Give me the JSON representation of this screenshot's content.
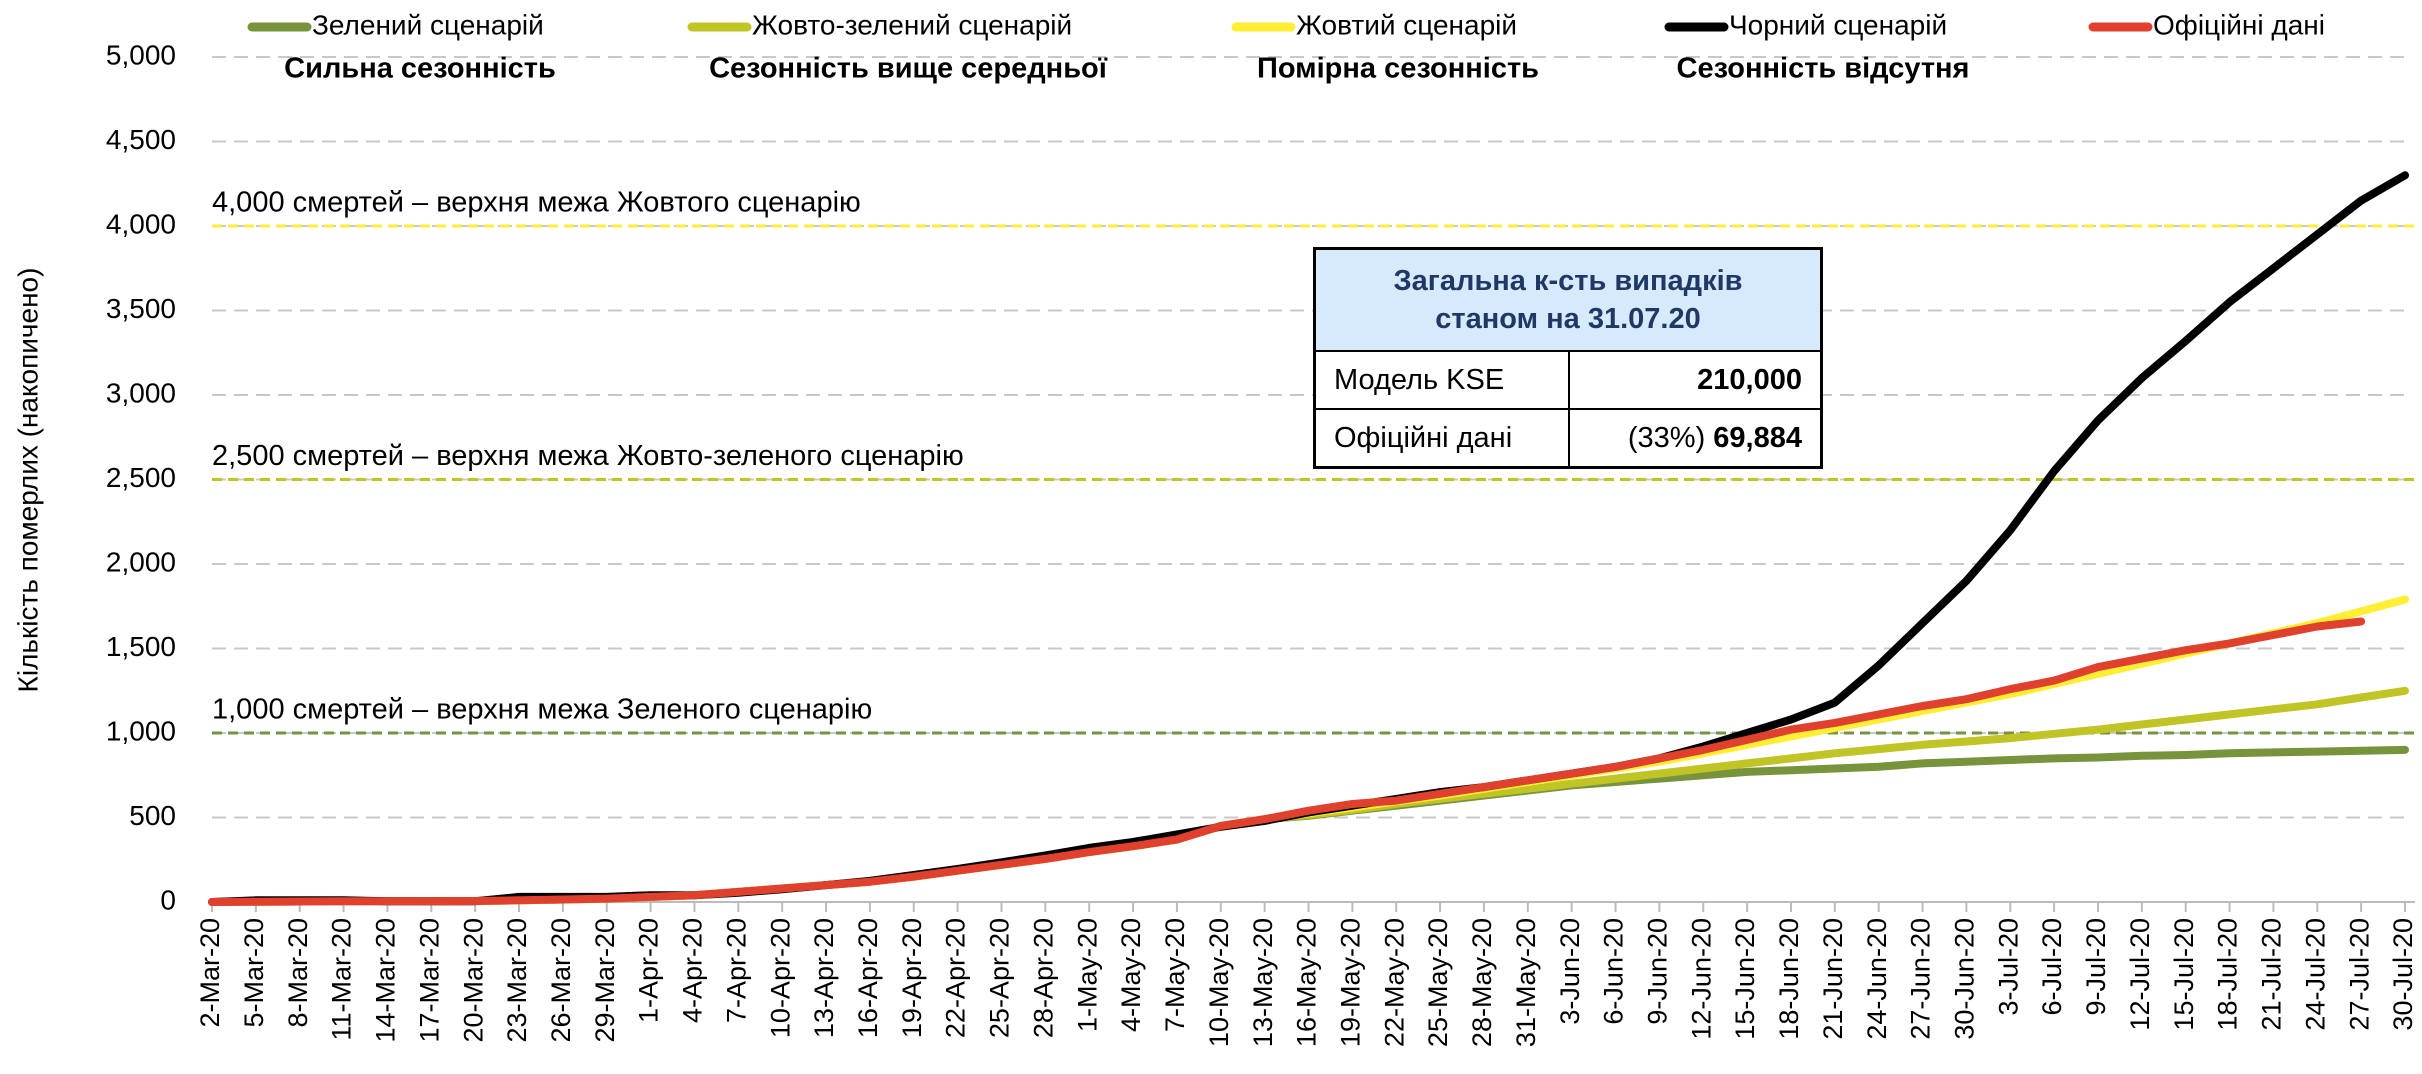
{
  "chart_data": {
    "type": "line",
    "y_label": "Кількість померлих (накопичено)",
    "categories": [
      "2-Mar-20",
      "5-Mar-20",
      "8-Mar-20",
      "11-Mar-20",
      "14-Mar-20",
      "17-Mar-20",
      "20-Mar-20",
      "23-Mar-20",
      "26-Mar-20",
      "29-Mar-20",
      "1-Apr-20",
      "4-Apr-20",
      "7-Apr-20",
      "10-Apr-20",
      "13-Apr-20",
      "16-Apr-20",
      "19-Apr-20",
      "22-Apr-20",
      "25-Apr-20",
      "28-Apr-20",
      "1-May-20",
      "4-May-20",
      "7-May-20",
      "10-May-20",
      "13-May-20",
      "16-May-20",
      "19-May-20",
      "22-May-20",
      "25-May-20",
      "28-May-20",
      "31-May-20",
      "3-Jun-20",
      "6-Jun-20",
      "9-Jun-20",
      "12-Jun-20",
      "15-Jun-20",
      "18-Jun-20",
      "21-Jun-20",
      "24-Jun-20",
      "27-Jun-20",
      "30-Jun-20",
      "3-Jul-20",
      "6-Jul-20",
      "9-Jul-20",
      "12-Jul-20",
      "15-Jul-20",
      "18-Jul-20",
      "21-Jul-20",
      "24-Jul-20",
      "27-Jul-20",
      "30-Jul-20"
    ],
    "series": [
      {
        "name": "Зелений сценарій",
        "note": "Сильна сезонність",
        "color": "#77933c",
        "values": [
          0,
          2,
          3,
          4,
          5,
          5,
          6,
          10,
          15,
          20,
          30,
          40,
          60,
          80,
          100,
          120,
          150,
          185,
          220,
          255,
          295,
          330,
          370,
          450,
          490,
          510,
          540,
          570,
          600,
          630,
          660,
          690,
          710,
          730,
          750,
          770,
          780,
          790,
          800,
          820,
          830,
          840,
          850,
          855,
          865,
          870,
          880,
          885,
          890,
          895,
          900
        ]
      },
      {
        "name": "Жовто-зелений сценарій",
        "note": "Сезонність вище середньої",
        "color": "#c0c424",
        "values": [
          0,
          2,
          3,
          4,
          5,
          5,
          6,
          10,
          15,
          20,
          30,
          40,
          60,
          80,
          100,
          120,
          150,
          185,
          220,
          255,
          295,
          330,
          370,
          450,
          490,
          515,
          545,
          580,
          610,
          640,
          670,
          700,
          730,
          760,
          790,
          820,
          850,
          880,
          905,
          930,
          950,
          970,
          995,
          1020,
          1050,
          1080,
          1110,
          1140,
          1170,
          1210,
          1250
        ]
      },
      {
        "name": "Жовтий сценарій",
        "note": "Помірна сезонність",
        "color": "#ffee33",
        "values": [
          0,
          2,
          3,
          4,
          5,
          5,
          6,
          10,
          15,
          20,
          30,
          40,
          60,
          80,
          100,
          120,
          150,
          185,
          220,
          255,
          295,
          330,
          370,
          450,
          490,
          525,
          560,
          595,
          630,
          670,
          710,
          750,
          790,
          830,
          880,
          930,
          980,
          1030,
          1080,
          1130,
          1180,
          1230,
          1290,
          1350,
          1410,
          1470,
          1530,
          1590,
          1650,
          1720,
          1790
        ]
      },
      {
        "name": "Чорний сценарій",
        "note": "Сезонність відсутня",
        "color": "#000000",
        "values": [
          0,
          10,
          10,
          10,
          5,
          5,
          5,
          30,
          30,
          30,
          40,
          40,
          55,
          75,
          100,
          125,
          160,
          195,
          235,
          275,
          320,
          355,
          400,
          445,
          480,
          530,
          570,
          610,
          650,
          680,
          720,
          760,
          800,
          850,
          920,
          1000,
          1080,
          1180,
          1400,
          1650,
          1900,
          2200,
          2550,
          2850,
          3100,
          3320,
          3550,
          3750,
          3950,
          4150,
          4300
        ]
      },
      {
        "name": "Офіційні дані",
        "color": "#e0402e",
        "values": [
          0,
          2,
          3,
          4,
          5,
          5,
          6,
          10,
          15,
          20,
          30,
          40,
          60,
          80,
          100,
          120,
          150,
          185,
          220,
          255,
          295,
          330,
          370,
          450,
          490,
          540,
          580,
          600,
          640,
          680,
          720,
          760,
          800,
          850,
          900,
          960,
          1020,
          1060,
          1110,
          1160,
          1200,
          1260,
          1310,
          1390,
          1440,
          1490,
          1530,
          1580,
          1630,
          1660,
          null
        ]
      }
    ],
    "ylim": [
      0,
      5000
    ],
    "yticks": [
      0,
      500,
      {
        "value": 1000,
        "label": "1,000"
      },
      {
        "value": 1500,
        "label": "1,500"
      },
      {
        "value": 2000,
        "label": "2,000"
      },
      {
        "value": 2500,
        "label": "2,500"
      },
      {
        "value": 3000,
        "label": "3,000"
      },
      {
        "value": 3500,
        "label": "3,500"
      },
      {
        "value": 4000,
        "label": "4,000"
      },
      {
        "value": 4500,
        "label": "4,500"
      },
      {
        "value": 5000,
        "label": "5,000"
      }
    ],
    "grid": true,
    "annotations": [
      {
        "value": 1000,
        "label": "1,000 смертей – верхня межа Зеленого сценарію",
        "color": "#77933c"
      },
      {
        "value": 2500,
        "label": "2,500 смертей – верхня межа Жовто-зеленого сценарію",
        "color": "#c0c424"
      },
      {
        "value": 4000,
        "label": "4,000 смертей – верхня межа Жовтого сценарію",
        "color": "#ffee33"
      }
    ],
    "table": {
      "title": "Загальна к-сть випадків",
      "subtitle": "станом на 31.07.20",
      "rows": [
        {
          "label": "Модель KSE",
          "value": "210,000"
        },
        {
          "label": "Офіційні дані",
          "prefix": "(33%)",
          "value": "69,884"
        }
      ]
    }
  }
}
